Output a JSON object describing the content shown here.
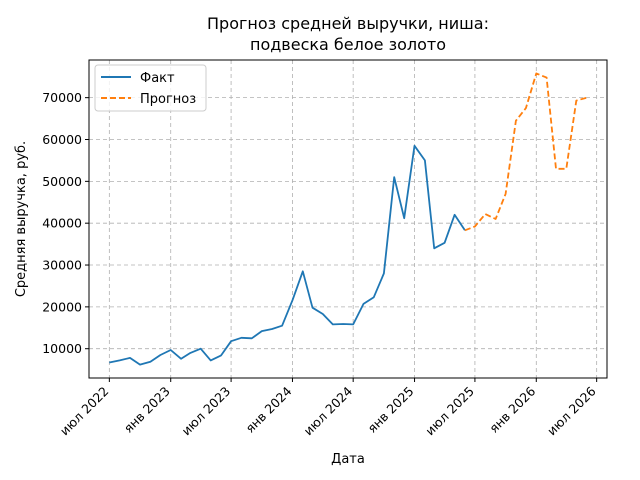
{
  "chart_data": {
    "type": "line",
    "title": [
      "Прогноз средней выручки, ниша:",
      "подвеска белое золото"
    ],
    "xlabel": "Дата",
    "ylabel": "Средняя выручка, руб.",
    "x_range": [
      "2022-05-01",
      "2026-08-01"
    ],
    "ylim": [
      3000,
      79000
    ],
    "x_ticks": [
      {
        "date": "2022-07-01",
        "label": "июл 2022"
      },
      {
        "date": "2023-01-01",
        "label": "янв 2023"
      },
      {
        "date": "2023-07-01",
        "label": "июл 2023"
      },
      {
        "date": "2024-01-01",
        "label": "янв 2024"
      },
      {
        "date": "2024-07-01",
        "label": "июл 2024"
      },
      {
        "date": "2025-01-01",
        "label": "янв 2025"
      },
      {
        "date": "2025-07-01",
        "label": "июл 2025"
      },
      {
        "date": "2026-01-01",
        "label": "янв 2026"
      },
      {
        "date": "2026-07-01",
        "label": "июл 2026"
      }
    ],
    "y_ticks": [
      10000,
      20000,
      30000,
      40000,
      50000,
      60000,
      70000
    ],
    "grid": true,
    "legend_position": "top-left",
    "series": [
      {
        "name": "Факт",
        "color": "#1f77b4",
        "style": "solid",
        "points": [
          [
            "2022-07-01",
            6700
          ],
          [
            "2022-08-01",
            7200
          ],
          [
            "2022-09-01",
            7800
          ],
          [
            "2022-10-01",
            6200
          ],
          [
            "2022-11-01",
            6900
          ],
          [
            "2022-12-01",
            8500
          ],
          [
            "2023-01-01",
            9700
          ],
          [
            "2023-02-01",
            7600
          ],
          [
            "2023-03-01",
            9000
          ],
          [
            "2023-04-01",
            10000
          ],
          [
            "2023-05-01",
            7200
          ],
          [
            "2023-06-01",
            8400
          ],
          [
            "2023-07-01",
            11800
          ],
          [
            "2023-08-01",
            12600
          ],
          [
            "2023-09-01",
            12500
          ],
          [
            "2023-10-01",
            14200
          ],
          [
            "2023-11-01",
            14700
          ],
          [
            "2023-12-01",
            15500
          ],
          [
            "2024-01-01",
            21600
          ],
          [
            "2024-02-01",
            28500
          ],
          [
            "2024-03-01",
            19800
          ],
          [
            "2024-04-01",
            18300
          ],
          [
            "2024-05-01",
            15800
          ],
          [
            "2024-06-01",
            15900
          ],
          [
            "2024-07-01",
            15800
          ],
          [
            "2024-08-01",
            20700
          ],
          [
            "2024-09-01",
            22300
          ],
          [
            "2024-10-01",
            28000
          ],
          [
            "2024-11-01",
            51000
          ],
          [
            "2024-12-01",
            41200
          ],
          [
            "2025-01-01",
            58500
          ],
          [
            "2025-02-01",
            55000
          ],
          [
            "2025-03-01",
            34000
          ],
          [
            "2025-04-01",
            35300
          ],
          [
            "2025-05-01",
            42000
          ],
          [
            "2025-06-01",
            38300
          ]
        ]
      },
      {
        "name": "Прогноз",
        "color": "#ff7f0e",
        "style": "dashed",
        "points": [
          [
            "2025-06-01",
            38300
          ],
          [
            "2025-07-01",
            39200
          ],
          [
            "2025-08-01",
            42200
          ],
          [
            "2025-09-01",
            41000
          ],
          [
            "2025-10-01",
            47000
          ],
          [
            "2025-11-01",
            64500
          ],
          [
            "2025-12-01",
            67500
          ],
          [
            "2026-01-01",
            75800
          ],
          [
            "2026-02-01",
            74800
          ],
          [
            "2026-03-01",
            53000
          ],
          [
            "2026-04-01",
            53000
          ],
          [
            "2026-05-01",
            69300
          ],
          [
            "2026-06-01",
            70000
          ]
        ]
      }
    ]
  }
}
